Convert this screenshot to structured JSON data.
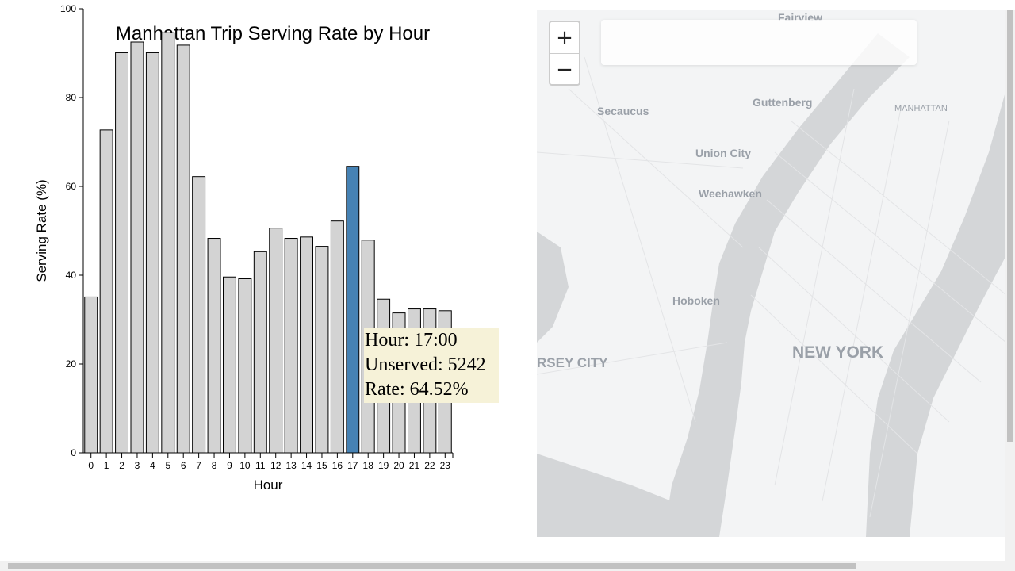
{
  "chart_data": {
    "type": "bar",
    "title": "Manhattan Trip Serving Rate by Hour",
    "xlabel": "Hour",
    "ylabel": "Serving Rate (%)",
    "ylim": [
      0,
      100
    ],
    "yticks": [
      "0",
      "20",
      "40",
      "60",
      "80",
      "100"
    ],
    "categories": [
      "0",
      "1",
      "2",
      "3",
      "4",
      "5",
      "6",
      "7",
      "8",
      "9",
      "10",
      "11",
      "12",
      "13",
      "14",
      "15",
      "16",
      "17",
      "18",
      "19",
      "20",
      "21",
      "22",
      "23"
    ],
    "values": [
      35.1,
      72.7,
      90.1,
      92.5,
      90.1,
      94.6,
      91.8,
      62.2,
      48.3,
      39.6,
      39.2,
      45.3,
      50.6,
      48.3,
      48.6,
      46.5,
      52.2,
      64.52,
      47.9,
      34.6,
      31.5,
      32.4,
      32.4,
      32.0
    ],
    "highlight_index": 17,
    "bar_color": "#d3d3d3",
    "highlight_color": "#4682b4",
    "grid": false
  },
  "tooltip": {
    "hour_line": "Hour: 17:00",
    "unserved_line": "Unserved: 5242",
    "rate_line": "Rate: 64.52%"
  },
  "map": {
    "zoom_in_label": "+",
    "zoom_out_label": "−",
    "labels": {
      "fairview": "Fairview",
      "secaucus": "Secaucus",
      "guttenberg": "Guttenberg",
      "manhattan": "MANHATTAN",
      "union_city": "Union City",
      "weehawken": "Weehawken",
      "hoboken": "Hoboken",
      "jersey_city": "RSEY CITY",
      "new_york": "NEW YORK"
    },
    "water_color": "#d4d6d8",
    "land_color": "#f3f4f5"
  }
}
